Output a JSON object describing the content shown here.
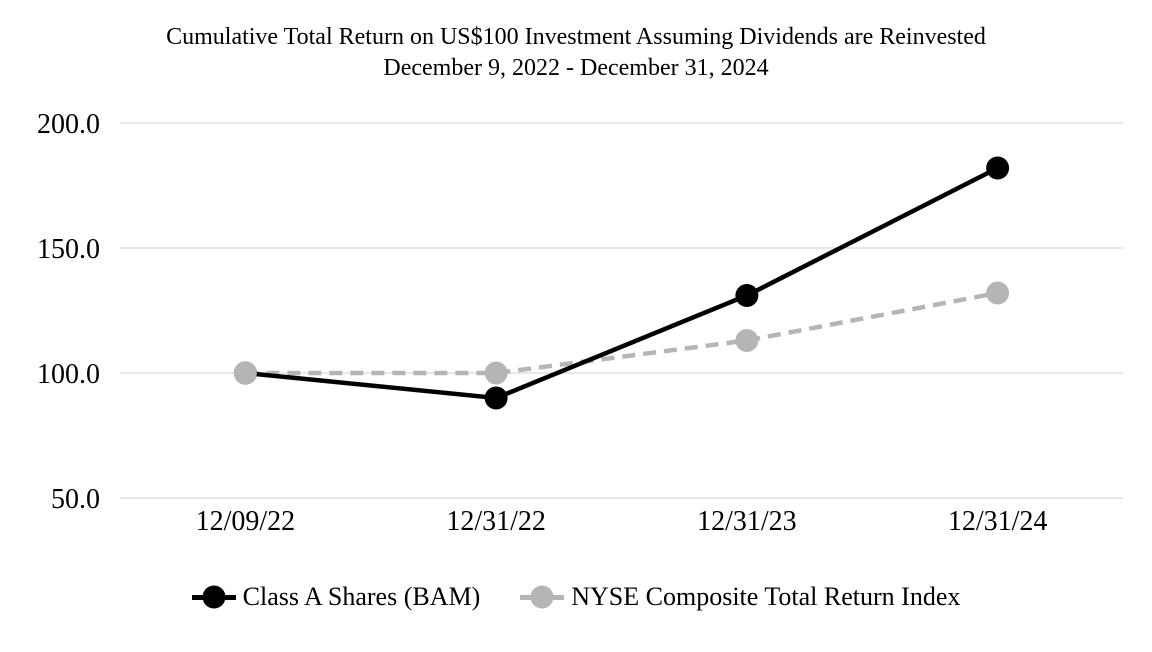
{
  "chart_data": {
    "type": "line",
    "title": "Cumulative Total Return on US$100 Investment Assuming Dividends are Reinvested",
    "subtitle": "December 9, 2022 - December 31, 2024",
    "categories": [
      "12/09/22",
      "12/31/22",
      "12/31/23",
      "12/31/24"
    ],
    "series": [
      {
        "name": "Class A Shares (BAM)",
        "color": "#000000",
        "line_style": "solid",
        "marker": "circle",
        "values": [
          100.0,
          90.0,
          131.0,
          182.0
        ]
      },
      {
        "name": "NYSE Composite Total Return Index",
        "color": "#b5b5b5",
        "line_style": "dashed",
        "marker": "circle",
        "values": [
          100.0,
          100.0,
          113.0,
          132.0
        ]
      }
    ],
    "y_axis": {
      "min": 50,
      "max": 200,
      "ticks": [
        {
          "value": 200,
          "label": "200.0"
        },
        {
          "value": 150,
          "label": "150.0"
        },
        {
          "value": 100,
          "label": "100.0"
        },
        {
          "value": 50,
          "label": "50.0"
        }
      ]
    },
    "grid": true,
    "gridline_color": "#dfdfdf",
    "legend_position": "bottom",
    "background": "#ffffff"
  }
}
